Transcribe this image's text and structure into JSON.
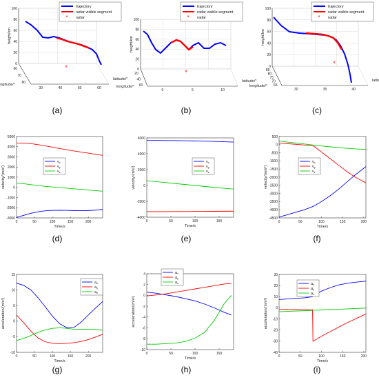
{
  "colors": {
    "blue": "#0000ff",
    "red": "#ff0000",
    "green": "#00cc00",
    "axis": "#333333",
    "grid": "#cfcfcf"
  },
  "subfigure_labels": [
    "(a)",
    "(b)",
    "(c)",
    "(d)",
    "(e)",
    "(f)",
    "(g)",
    "(h)",
    "(i)"
  ],
  "chart_data": [
    {
      "id": "a",
      "type": "line",
      "projection": "3d",
      "zlabel": "height/km",
      "xlabel": "longitude/°",
      "ylabel": "latitude/°",
      "zticks": [
        "0",
        "20",
        "40",
        "60",
        "80",
        "100"
      ],
      "xticks": [
        "60",
        "70",
        "80"
      ],
      "yticks": [
        "30",
        "40",
        "50",
        "60"
      ],
      "legend": [
        "trajectory",
        "radar visible segment",
        "radar"
      ],
      "series": [
        {
          "name": "trajectory",
          "z": [
            96,
            93,
            85,
            75,
            65,
            60,
            61,
            58,
            55,
            50,
            45,
            40,
            32,
            20,
            8,
            2
          ]
        },
        {
          "name": "radar visible segment",
          "z": [
            61,
            59,
            56,
            53,
            50,
            47,
            44
          ]
        }
      ]
    },
    {
      "id": "b",
      "type": "line",
      "projection": "3d",
      "zlabel": "height/km",
      "xlabel": "longitude/°",
      "ylabel": "latitude/°",
      "zticks": [
        "0",
        "20",
        "40",
        "60",
        "80",
        "100"
      ],
      "xticks": [
        "20",
        "40",
        "60"
      ],
      "yticks": [
        "0",
        "5",
        "10"
      ],
      "legend": [
        "trajectory",
        "radar visible segment",
        "radar"
      ],
      "series": [
        {
          "name": "trajectory",
          "z": [
            92,
            85,
            70,
            55,
            45,
            50,
            60,
            68,
            70,
            60,
            48,
            58,
            62,
            48,
            55,
            58,
            50
          ]
        },
        {
          "name": "radar visible segment",
          "z": [
            60,
            68,
            70,
            66,
            58,
            50
          ]
        }
      ]
    },
    {
      "id": "c",
      "type": "line",
      "projection": "3d",
      "zlabel": "height/km",
      "xlabel": "longitude/°",
      "ylabel": "latitude/°",
      "zticks": [
        "0",
        "20",
        "40",
        "60",
        "80",
        "100"
      ],
      "xticks": [
        "85",
        "80",
        "75",
        "70",
        "65"
      ],
      "yticks": [
        "30",
        "35",
        "40"
      ],
      "legend": [
        "trajectory",
        "radar visible segment",
        "radar"
      ],
      "series": [
        {
          "name": "trajectory",
          "z": [
            98,
            90,
            80,
            72,
            70,
            69,
            68,
            67,
            65,
            60,
            50,
            35,
            20,
            5
          ]
        },
        {
          "name": "radar visible segment",
          "z": [
            70,
            69,
            68,
            67,
            65,
            60,
            55
          ]
        }
      ]
    },
    {
      "id": "d",
      "type": "line",
      "xlabel": "Time/s",
      "ylabel": "velocity/(m/s²)",
      "xlim": [
        0,
        240
      ],
      "ylim": [
        -3000,
        5000
      ],
      "xticks": [
        "0",
        "50",
        "100",
        "150",
        "200"
      ],
      "yticks": [
        "-3000",
        "-2000",
        "-1000",
        "0",
        "1000",
        "2000",
        "3000",
        "4000",
        "5000"
      ],
      "x": [
        0,
        20,
        40,
        60,
        80,
        100,
        120,
        140,
        160,
        180,
        200,
        220,
        240
      ],
      "series": [
        {
          "name": "v_x",
          "values": [
            -2950,
            -2750,
            -2550,
            -2400,
            -2300,
            -2260,
            -2250,
            -2260,
            -2280,
            -2290,
            -2280,
            -2240,
            -2170
          ]
        },
        {
          "name": "v_y",
          "values": [
            4350,
            4360,
            4300,
            4200,
            4080,
            3950,
            3820,
            3700,
            3580,
            3470,
            3370,
            3250,
            3150
          ]
        },
        {
          "name": "v_z",
          "values": [
            420,
            360,
            270,
            180,
            100,
            40,
            -20,
            -80,
            -140,
            -200,
            -260,
            -320,
            -380
          ]
        }
      ],
      "legend_labels": [
        {
          "b": "v",
          "s": "x"
        },
        {
          "b": "v",
          "s": "y"
        },
        {
          "b": "v",
          "s": "z"
        }
      ]
    },
    {
      "id": "e",
      "type": "line",
      "xlabel": "Time/s",
      "ylabel": "velocity/(m/s²)",
      "xlim": [
        0,
        180
      ],
      "ylim": [
        -4000,
        6000
      ],
      "xticks": [
        "0",
        "50",
        "100",
        "150"
      ],
      "yticks": [
        "-4000",
        "-2000",
        "0",
        "2000",
        "4000",
        "6000"
      ],
      "x": [
        0,
        20,
        40,
        60,
        80,
        100,
        120,
        140,
        160,
        180
      ],
      "series": [
        {
          "name": "v_x",
          "values": [
            5680,
            5680,
            5670,
            5660,
            5640,
            5620,
            5590,
            5560,
            5520,
            5470
          ]
        },
        {
          "name": "v_y",
          "values": [
            -3300,
            -3300,
            -3300,
            -3290,
            -3290,
            -3280,
            -3270,
            -3260,
            -3250,
            -3240
          ]
        },
        {
          "name": "v_z",
          "values": [
            600,
            480,
            360,
            240,
            120,
            0,
            -120,
            -240,
            -350,
            -450
          ]
        }
      ],
      "legend_labels": [
        {
          "b": "v",
          "s": "x"
        },
        {
          "b": "v",
          "s": "y"
        },
        {
          "b": "v",
          "s": "z"
        }
      ]
    },
    {
      "id": "f",
      "type": "line",
      "xlabel": "Time/s",
      "ylabel": "velocity/(m/s²)",
      "xlim": [
        0,
        205
      ],
      "ylim": [
        -4500,
        500
      ],
      "xticks": [
        "0",
        "50",
        "100",
        "150",
        "200"
      ],
      "yticks": [
        "-4500",
        "-4000",
        "-3500",
        "-3000",
        "-2500",
        "-2000",
        "-1500",
        "-1000",
        "-500",
        "0",
        "500"
      ],
      "x": [
        0,
        20,
        40,
        60,
        80,
        100,
        120,
        140,
        160,
        180,
        205
      ],
      "series": [
        {
          "name": "v_x",
          "values": [
            -4450,
            -4300,
            -4150,
            -4000,
            -3800,
            -3500,
            -3150,
            -2750,
            -2300,
            -1850,
            -1350
          ]
        },
        {
          "name": "v_y",
          "values": [
            100,
            60,
            20,
            -20,
            -60,
            -450,
            -850,
            -1250,
            -1650,
            -2000,
            -2350
          ]
        },
        {
          "name": "v_z",
          "values": [
            220,
            160,
            100,
            40,
            -20,
            -80,
            -130,
            -180,
            -220,
            -260,
            -290
          ]
        }
      ],
      "legend_labels": [
        {
          "b": "v",
          "s": "x"
        },
        {
          "b": "v",
          "s": "y"
        },
        {
          "b": "v",
          "s": "z"
        }
      ]
    },
    {
      "id": "g",
      "type": "line",
      "xlabel": "Time/s",
      "ylabel": "acceleration/(m/s²)",
      "xlim": [
        0,
        240
      ],
      "ylim": [
        -10,
        15
      ],
      "xticks": [
        "0",
        "50",
        "100",
        "150",
        "200"
      ],
      "yticks": [
        "-10",
        "-5",
        "0",
        "5",
        "10",
        "15"
      ],
      "x": [
        0,
        20,
        40,
        60,
        80,
        100,
        120,
        140,
        160,
        180,
        200,
        220,
        240
      ],
      "series": [
        {
          "name": "a_x",
          "values": [
            12.2,
            11.5,
            10.0,
            7.5,
            4.6,
            1.6,
            -0.8,
            -2.1,
            -2.0,
            -0.3,
            2.0,
            4.2,
            6.3
          ]
        },
        {
          "name": "a_y",
          "values": [
            2.0,
            -0.5,
            -3.2,
            -5.4,
            -6.6,
            -7.1,
            -7.2,
            -7.1,
            -6.9,
            -6.5,
            -5.9,
            -5.1,
            -4.2
          ]
        },
        {
          "name": "a_z",
          "values": [
            -6.2,
            -5.5,
            -4.6,
            -3.6,
            -2.8,
            -2.3,
            -2.1,
            -2.3,
            -2.6,
            -2.6,
            -2.6,
            -2.7,
            -2.9
          ]
        }
      ],
      "legend_labels": [
        {
          "b": "a",
          "s": "x"
        },
        {
          "b": "a",
          "s": "y"
        },
        {
          "b": "a",
          "s": "z"
        }
      ]
    },
    {
      "id": "h",
      "type": "line",
      "xlabel": "Time/s",
      "ylabel": "acceleration/(m/s²)",
      "xlim": [
        0,
        180
      ],
      "ylim": [
        -10,
        4
      ],
      "xticks": [
        "0",
        "50",
        "100",
        "150"
      ],
      "yticks": [
        "-10",
        "-8",
        "-6",
        "-4",
        "-2",
        "0",
        "2",
        "4"
      ],
      "x": [
        0,
        20,
        40,
        60,
        80,
        100,
        120,
        140,
        160,
        175
      ],
      "series": [
        {
          "name": "a_x",
          "values": [
            0.6,
            0.4,
            0.1,
            -0.2,
            -0.6,
            -1.0,
            -1.6,
            -2.3,
            -3.1,
            -3.6
          ]
        },
        {
          "name": "a_y",
          "values": [
            -0.1,
            0.1,
            0.3,
            0.6,
            0.9,
            1.2,
            1.5,
            1.8,
            2.1,
            2.2
          ]
        },
        {
          "name": "a_z",
          "values": [
            -9.0,
            -9.0,
            -8.9,
            -8.8,
            -8.5,
            -7.9,
            -6.8,
            -4.6,
            -1.6,
            0.0
          ]
        }
      ],
      "legend_labels": [
        {
          "b": "a",
          "s": "x"
        },
        {
          "b": "a",
          "s": "y"
        },
        {
          "b": "a",
          "s": "z"
        }
      ]
    },
    {
      "id": "i",
      "type": "line",
      "xlabel": "Time/s",
      "ylabel": "acceleration/(m/s²)",
      "xlim": [
        0,
        205
      ],
      "ylim": [
        -40,
        30
      ],
      "xticks": [
        "0",
        "50",
        "100",
        "150",
        "200"
      ],
      "yticks": [
        "-40",
        "-30",
        "-20",
        "-10",
        "0",
        "10",
        "20",
        "30"
      ],
      "x": [
        0,
        20,
        40,
        60,
        79,
        80,
        100,
        120,
        140,
        160,
        180,
        205
      ],
      "series": [
        {
          "name": "a_x",
          "values": [
            7.5,
            8.0,
            8.5,
            9.0,
            10.0,
            10.5,
            15.0,
            18.0,
            20.5,
            22.0,
            23.0,
            24.0
          ]
        },
        {
          "name": "a_y",
          "values": [
            -1.5,
            -1.6,
            -1.6,
            -1.7,
            -1.7,
            -30.0,
            -25.5,
            -21.5,
            -17.5,
            -13.5,
            -10.0,
            -5.5
          ]
        },
        {
          "name": "a_z",
          "values": [
            -3.5,
            -3.2,
            -2.9,
            -2.6,
            -2.3,
            -2.2,
            -1.9,
            -1.6,
            -1.3,
            -1.0,
            -0.6,
            -0.2
          ]
        }
      ],
      "legend_labels": [
        {
          "b": "a",
          "s": "x"
        },
        {
          "b": "a",
          "s": "y"
        },
        {
          "b": "a",
          "s": "z"
        }
      ]
    }
  ]
}
